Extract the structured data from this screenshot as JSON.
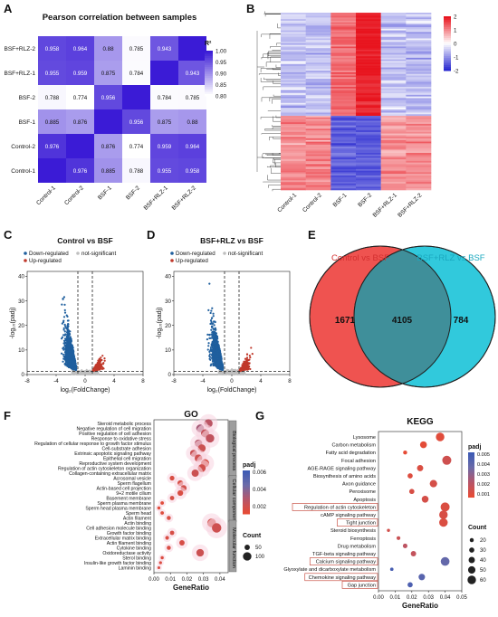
{
  "panel_labels": {
    "A": "A",
    "B": "B",
    "C": "C",
    "D": "D",
    "E": "E",
    "F": "F",
    "G": "G"
  },
  "chart_data": [
    {
      "id": "A",
      "type": "heatmap",
      "title": "Pearson correlation between samples",
      "rows": [
        "BSF+RLZ-2",
        "BSF+RLZ-1",
        "BSF-2",
        "BSF-1",
        "Control-2",
        "Control-1"
      ],
      "cols": [
        "Control-1",
        "Control-2",
        "BSF-1",
        "BSF-2",
        "BSF+RLZ-1",
        "BSF+RLZ-2"
      ],
      "values": [
        [
          0.958,
          0.964,
          0.88,
          0.785,
          0.943,
          1
        ],
        [
          0.955,
          0.959,
          0.875,
          0.784,
          1,
          0.943
        ],
        [
          0.788,
          0.774,
          0.956,
          1,
          0.784,
          0.785
        ],
        [
          0.885,
          0.876,
          1,
          0.956,
          0.875,
          0.88
        ],
        [
          0.976,
          1,
          0.876,
          0.774,
          0.959,
          0.964
        ],
        [
          1,
          0.976,
          0.885,
          0.788,
          0.955,
          0.958
        ]
      ],
      "cell_text": [
        [
          "0.958",
          "0.964",
          "0.88",
          "0.785",
          "0.943",
          ""
        ],
        [
          "0.955",
          "0.959",
          "0.875",
          "0.784",
          "",
          "0.943"
        ],
        [
          "0.788",
          "0.774",
          "0.956",
          "",
          "0.784",
          "0.785"
        ],
        [
          "0.885",
          "0.876",
          "",
          "0.956",
          "0.875",
          "0.88"
        ],
        [
          "0.976",
          "",
          "0.876",
          "0.774",
          "0.959",
          "0.964"
        ],
        [
          "",
          "0.976",
          "0.885",
          "0.788",
          "0.955",
          "0.958"
        ]
      ],
      "legend_title": "R²",
      "legend_ticks": [
        "1.00",
        "0.95",
        "0.90",
        "0.85",
        "0.80"
      ],
      "colors": {
        "low": "#ffffff",
        "high": "#3b1bd6"
      }
    },
    {
      "id": "B",
      "type": "heatmap",
      "cols": [
        "Control-1",
        "Control-2",
        "BSF-1",
        "BSF-2",
        "BSF+RLZ-1",
        "BSF+RLZ-2"
      ],
      "legend_ticks": [
        "2",
        "1",
        "0",
        "-1",
        "-2"
      ],
      "colors": {
        "low": "#2a2ad0",
        "mid": "#ffffff",
        "high": "#e8141e"
      }
    },
    {
      "id": "C",
      "type": "scatter",
      "title": "Control vs BSF",
      "legend": [
        "Down-regulated",
        "not-significant",
        "Up-regulated"
      ],
      "series_colors": {
        "down": "#1f5f9e",
        "ns": "#bfbfbf",
        "up": "#c0392b"
      },
      "xlabel": "log₂(FoldChange)",
      "ylabel": "-log₁₀(padj)",
      "xticks": [
        "-8",
        "-4",
        "0",
        "4",
        "8"
      ],
      "yticks": [
        "0",
        "10",
        "20",
        "30",
        "40"
      ],
      "xlim": [
        -8,
        8
      ],
      "ylim": [
        0,
        42
      ]
    },
    {
      "id": "D",
      "type": "scatter",
      "title": "BSF+RLZ vs BSF",
      "legend": [
        "Down-regulated",
        "not-significant",
        "Up-regulated"
      ],
      "series_colors": {
        "down": "#1f5f9e",
        "ns": "#bfbfbf",
        "up": "#c0392b"
      },
      "xlabel": "log₂(FoldChange)",
      "ylabel": "-log₁₀(padj)",
      "xticks": [
        "-8",
        "-4",
        "0",
        "4",
        "8"
      ],
      "yticks": [
        "0",
        "10",
        "20",
        "30",
        "40"
      ],
      "xlim": [
        -8,
        8
      ],
      "ylim": [
        0,
        42
      ]
    },
    {
      "id": "E",
      "type": "venn",
      "sets": [
        {
          "name": "Control vs BSF",
          "color": "#ef5350"
        },
        {
          "name": "BSF+RLZ vs BSF",
          "color": "#26c6da"
        }
      ],
      "counts": {
        "left": "1671",
        "both": "4105",
        "right": "784"
      }
    },
    {
      "id": "F",
      "type": "scatter",
      "title": "GO",
      "xlabel": "GeneRatio",
      "xticks": [
        "0.00",
        "0.01",
        "0.02",
        "0.03",
        "0.04"
      ],
      "xlim": [
        0,
        0.045
      ],
      "terms": [
        {
          "name": "Steroid metabolic process",
          "x": 0.033,
          "count": 100,
          "padj": 0.0026
        },
        {
          "name": "Negative regulation of cell migration",
          "x": 0.028,
          "count": 90,
          "padj": 0.0032
        },
        {
          "name": "Positive regulation of cell adhesion",
          "x": 0.031,
          "count": 95,
          "padj": 0.0023
        },
        {
          "name": "Response to oxidative stress",
          "x": 0.034,
          "count": 100,
          "padj": 0.0024
        },
        {
          "name": "Regulation of cellular response to growth factor stimulus",
          "x": 0.027,
          "count": 85,
          "padj": 0.0028
        },
        {
          "name": "Cell-substrate adhesion",
          "x": 0.029,
          "count": 90,
          "padj": 0.002
        },
        {
          "name": "Extrinsic apoptotic signaling pathway",
          "x": 0.024,
          "count": 75,
          "padj": 0.0021
        },
        {
          "name": "Epithelial cell migration",
          "x": 0.027,
          "count": 85,
          "padj": 0.0019
        },
        {
          "name": "Reproductive system development",
          "x": 0.031,
          "count": 95,
          "padj": 0.0016
        },
        {
          "name": "Regulation of actin cytoskeleton organization",
          "x": 0.029,
          "count": 90,
          "padj": 0.0018
        },
        {
          "name": "Collagen-containing extracellular matrix",
          "x": 0.025,
          "count": 80,
          "padj": 0.002
        },
        {
          "name": "Acrosomal vesicle",
          "x": 0.011,
          "count": 40,
          "padj": 0.0015
        },
        {
          "name": "Sperm flagellum",
          "x": 0.016,
          "count": 55,
          "padj": 0.0016
        },
        {
          "name": "Actin-based cell projection",
          "x": 0.018,
          "count": 60,
          "padj": 0.0018
        },
        {
          "name": "9+2 motile cilium",
          "x": 0.016,
          "count": 55,
          "padj": 0.0015
        },
        {
          "name": "Basement membrane",
          "x": 0.011,
          "count": 35,
          "padj": 0.0016
        },
        {
          "name": "Sperm plasma membrane",
          "x": 0.005,
          "count": 20,
          "padj": 0.0012
        },
        {
          "name": "Sperm head plasma membrane",
          "x": 0.003,
          "count": 15,
          "padj": 0.0012
        },
        {
          "name": "Sperm head",
          "x": 0.005,
          "count": 20,
          "padj": 0.0013
        },
        {
          "name": "Actin filament",
          "x": 0.009,
          "count": 30,
          "padj": 0.0015
        },
        {
          "name": "Actin binding",
          "x": 0.035,
          "count": 105,
          "padj": 0.0018
        },
        {
          "name": "Cell adhesion molecule binding",
          "x": 0.038,
          "count": 115,
          "padj": 0.0019
        },
        {
          "name": "Growth factor binding",
          "x": 0.011,
          "count": 35,
          "padj": 0.0016
        },
        {
          "name": "Extracellular matrix binding",
          "x": 0.008,
          "count": 25,
          "padj": 0.0015
        },
        {
          "name": "Actin filament binding",
          "x": 0.017,
          "count": 50,
          "padj": 0.0016
        },
        {
          "name": "Cytokine binding",
          "x": 0.009,
          "count": 30,
          "padj": 0.0015
        },
        {
          "name": "Oxidoreductase activity",
          "x": 0.028,
          "count": 85,
          "padj": 0.002
        },
        {
          "name": "Sterol binding",
          "x": 0.005,
          "count": 15,
          "padj": 0.0014
        },
        {
          "name": "Insulin-like growth factor binding",
          "x": 0.004,
          "count": 12,
          "padj": 0.0014
        },
        {
          "name": "Laminin binding",
          "x": 0.003,
          "count": 10,
          "padj": 0.0015
        }
      ],
      "groups": [
        "Biological process",
        "Cellular component",
        "Molecular function"
      ],
      "legend_padj_title": "padj",
      "legend_padj_ticks": [
        "0.006",
        "0.004",
        "0.002"
      ],
      "legend_count_title": "Count",
      "legend_count_ticks": [
        "50",
        "100"
      ]
    },
    {
      "id": "G",
      "type": "scatter",
      "title": "KEGG",
      "xlabel": "GeneRatio",
      "xticks": [
        "0.00",
        "0.01",
        "0.02",
        "0.03",
        "0.04",
        "0.05"
      ],
      "xlim": [
        0,
        0.05
      ],
      "terms": [
        {
          "name": "Lysosome",
          "x": 0.037,
          "count": 60,
          "padj": 0.0006,
          "highlight": false
        },
        {
          "name": "Carbon metabolism",
          "x": 0.027,
          "count": 45,
          "padj": 0.0005,
          "highlight": false
        },
        {
          "name": "Fatty acid degradation",
          "x": 0.016,
          "count": 20,
          "padj": 0.0004,
          "highlight": false
        },
        {
          "name": "Focal adhesion",
          "x": 0.041,
          "count": 65,
          "padj": 0.0012,
          "highlight": false
        },
        {
          "name": "AGE-RAGE signaling pathway",
          "x": 0.025,
          "count": 40,
          "padj": 0.0008,
          "highlight": false
        },
        {
          "name": "Biosynthesis of amino acids",
          "x": 0.019,
          "count": 30,
          "padj": 0.0007,
          "highlight": false
        },
        {
          "name": "Axon guidance",
          "x": 0.033,
          "count": 50,
          "padj": 0.001,
          "highlight": false
        },
        {
          "name": "Peroxisome",
          "x": 0.02,
          "count": 30,
          "padj": 0.0009,
          "highlight": false
        },
        {
          "name": "Apoptosis",
          "x": 0.028,
          "count": 45,
          "padj": 0.001,
          "highlight": false
        },
        {
          "name": "Regulation of actin cytoskeleton",
          "x": 0.04,
          "count": 65,
          "padj": 0.0008,
          "highlight": true
        },
        {
          "name": "cAMP signaling pathway",
          "x": 0.039,
          "count": 60,
          "padj": 0.0009,
          "highlight": false
        },
        {
          "name": "Tight junction",
          "x": 0.039,
          "count": 60,
          "padj": 0.0008,
          "highlight": true
        },
        {
          "name": "Steroid biosynthesis",
          "x": 0.006,
          "count": 12,
          "padj": 0.0011,
          "highlight": false
        },
        {
          "name": "Ferroptosis",
          "x": 0.012,
          "count": 18,
          "padj": 0.0014,
          "highlight": false
        },
        {
          "name": "Drug metabolism",
          "x": 0.016,
          "count": 25,
          "padj": 0.0018,
          "highlight": false
        },
        {
          "name": "TGF-beta signaling pathway",
          "x": 0.021,
          "count": 32,
          "padj": 0.0016,
          "highlight": false
        },
        {
          "name": "Calcium signaling pathway",
          "x": 0.04,
          "count": 62,
          "padj": 0.004,
          "highlight": true
        },
        {
          "name": "Glyoxylate and dicarboxylate metabolism",
          "x": 0.008,
          "count": 14,
          "padj": 0.005,
          "highlight": false
        },
        {
          "name": "Chemokine signaling pathway",
          "x": 0.026,
          "count": 42,
          "padj": 0.0044,
          "highlight": true
        },
        {
          "name": "Gap junction",
          "x": 0.019,
          "count": 30,
          "padj": 0.0048,
          "highlight": true
        }
      ],
      "legend_padj_title": "padj",
      "legend_padj_ticks": [
        "0.005",
        "0.004",
        "0.003",
        "0.002",
        "0.001"
      ],
      "legend_count_title": "Count",
      "legend_count_ticks": [
        "20",
        "30",
        "40",
        "50",
        "60"
      ]
    }
  ]
}
